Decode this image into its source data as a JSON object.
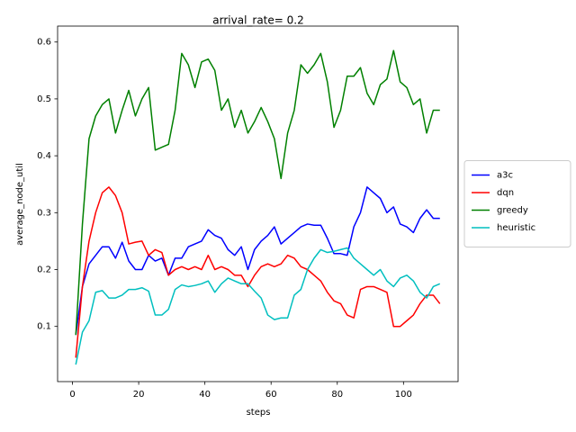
{
  "chart_data": {
    "type": "line",
    "title": "arrival_rate= 0.2",
    "x_label": "steps",
    "y_label": "average_node_util",
    "x": [
      1,
      3,
      5,
      7,
      9,
      11,
      13,
      15,
      17,
      19,
      21,
      23,
      25,
      27,
      29,
      31,
      33,
      35,
      37,
      39,
      41,
      43,
      45,
      47,
      49,
      51,
      53,
      55,
      57,
      59,
      61,
      63,
      65,
      67,
      69,
      71,
      73,
      75,
      77,
      79,
      81,
      83,
      85,
      87,
      89,
      91,
      93,
      95,
      97,
      99,
      101,
      103,
      105,
      107,
      109,
      111
    ],
    "series": [
      {
        "name": "a3c",
        "color": "#0000ff",
        "values": [
          0.085,
          0.17,
          0.21,
          0.225,
          0.24,
          0.24,
          0.22,
          0.248,
          0.215,
          0.2,
          0.2,
          0.225,
          0.215,
          0.22,
          0.19,
          0.22,
          0.22,
          0.24,
          0.245,
          0.25,
          0.27,
          0.26,
          0.255,
          0.235,
          0.225,
          0.24,
          0.2,
          0.235,
          0.25,
          0.26,
          0.275,
          0.245,
          0.255,
          0.265,
          0.275,
          0.28,
          0.278,
          0.278,
          0.255,
          0.228,
          0.228,
          0.225,
          0.275,
          0.3,
          0.345,
          0.335,
          0.325,
          0.3,
          0.31,
          0.28,
          0.275,
          0.265,
          0.29,
          0.305,
          0.29,
          0.29
        ]
      },
      {
        "name": "dqn",
        "color": "#ff0000",
        "values": [
          0.045,
          0.17,
          0.25,
          0.3,
          0.335,
          0.345,
          0.33,
          0.3,
          0.245,
          0.248,
          0.25,
          0.225,
          0.235,
          0.23,
          0.19,
          0.2,
          0.205,
          0.2,
          0.205,
          0.2,
          0.225,
          0.2,
          0.205,
          0.2,
          0.19,
          0.19,
          0.17,
          0.19,
          0.205,
          0.21,
          0.205,
          0.21,
          0.225,
          0.22,
          0.205,
          0.2,
          0.19,
          0.18,
          0.16,
          0.145,
          0.14,
          0.12,
          0.115,
          0.165,
          0.17,
          0.17,
          0.165,
          0.16,
          0.1,
          0.1,
          0.11,
          0.12,
          0.14,
          0.155,
          0.155,
          0.14
        ]
      },
      {
        "name": "greedy",
        "color": "#008000",
        "values": [
          0.085,
          0.28,
          0.43,
          0.47,
          0.49,
          0.5,
          0.44,
          0.48,
          0.515,
          0.47,
          0.5,
          0.52,
          0.41,
          0.415,
          0.42,
          0.48,
          0.58,
          0.56,
          0.52,
          0.565,
          0.57,
          0.55,
          0.48,
          0.5,
          0.45,
          0.48,
          0.44,
          0.46,
          0.485,
          0.46,
          0.43,
          0.36,
          0.44,
          0.48,
          0.56,
          0.545,
          0.56,
          0.58,
          0.53,
          0.45,
          0.48,
          0.54,
          0.54,
          0.555,
          0.51,
          0.49,
          0.525,
          0.535,
          0.585,
          0.53,
          0.52,
          0.49,
          0.5,
          0.44,
          0.48,
          0.48
        ]
      },
      {
        "name": "heuristic",
        "color": "#00bfbf",
        "values": [
          0.033,
          0.09,
          0.11,
          0.16,
          0.163,
          0.15,
          0.15,
          0.155,
          0.165,
          0.165,
          0.168,
          0.162,
          0.12,
          0.12,
          0.13,
          0.165,
          0.173,
          0.17,
          0.172,
          0.175,
          0.18,
          0.16,
          0.175,
          0.185,
          0.18,
          0.175,
          0.175,
          0.162,
          0.15,
          0.12,
          0.112,
          0.115,
          0.115,
          0.155,
          0.165,
          0.2,
          0.22,
          0.235,
          0.23,
          0.232,
          0.235,
          0.238,
          0.22,
          0.21,
          0.2,
          0.19,
          0.2,
          0.18,
          0.17,
          0.185,
          0.19,
          0.18,
          0.16,
          0.15,
          0.17,
          0.175
        ]
      }
    ],
    "xlim": [
      -4.5,
      116.5
    ],
    "ylim": [
      0.003,
      0.628
    ],
    "xticks": [
      0,
      20,
      40,
      60,
      80,
      100
    ],
    "yticks": [
      0.1,
      0.2,
      0.3,
      0.4,
      0.5,
      0.6
    ],
    "grid": false,
    "legend": "right"
  }
}
